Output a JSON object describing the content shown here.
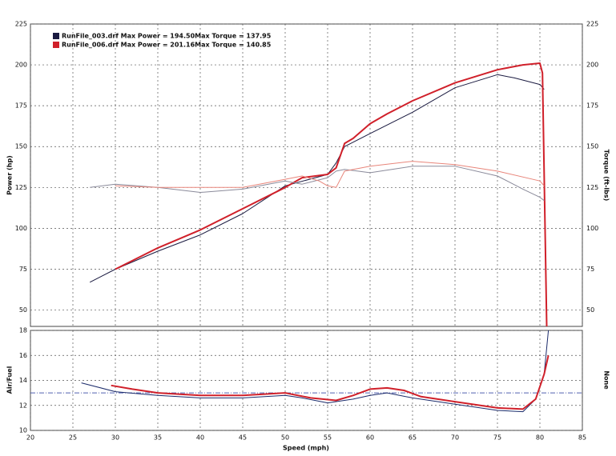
{
  "chart_data": [
    {
      "type": "line",
      "ylabel": "Power (hp)",
      "y2label": "Torque (ft-lbs)",
      "xlim": [
        20,
        85
      ],
      "ylim": [
        40,
        225
      ],
      "yticks": [
        50,
        75,
        100,
        125,
        150,
        175,
        200,
        225
      ],
      "y2lim": [
        40,
        225
      ],
      "y2ticks": [
        50,
        75,
        100,
        125,
        150,
        175,
        200,
        225
      ],
      "grid": true,
      "series": [
        {
          "name": "RunFile_003.drf Max Power = 194.50Max Torque = 137.95",
          "color": "#1a1a40",
          "x": [
            27,
            30,
            35,
            40,
            45,
            50,
            55,
            56,
            57,
            60,
            65,
            70,
            75,
            77,
            80,
            80.5
          ],
          "values": [
            67,
            75,
            86,
            96,
            109,
            126,
            133,
            140,
            150,
            158,
            171,
            186,
            194,
            192,
            188,
            185
          ]
        },
        {
          "name": "RunFile_006.drf Max Power = 201.16Max Torque = 140.85",
          "color": "#d0202a",
          "x": [
            30,
            35,
            40,
            45,
            50,
            52,
            55,
            56,
            57,
            58,
            60,
            62,
            65,
            70,
            75,
            78,
            80,
            80.3,
            80.8
          ],
          "values": [
            75,
            88,
            99,
            112,
            125,
            131,
            133,
            137,
            152,
            155,
            164,
            170,
            178,
            189,
            197,
            200,
            201,
            195,
            40
          ]
        },
        {
          "color": "#8a8a9a",
          "axis": "y2",
          "x": [
            27,
            30,
            35,
            40,
            45,
            50,
            52,
            55,
            56,
            57,
            60,
            65,
            70,
            75,
            78,
            80,
            80.5
          ],
          "values": [
            125,
            127,
            125,
            122,
            124,
            129,
            127,
            131,
            135,
            136,
            134,
            138,
            138,
            132,
            124,
            119,
            117
          ]
        },
        {
          "color": "#e8857a",
          "axis": "y2",
          "x": [
            30,
            35,
            40,
            45,
            50,
            52,
            54,
            55,
            56,
            57,
            60,
            65,
            70,
            75,
            80,
            80.5
          ],
          "values": [
            126,
            125,
            125,
            125,
            130,
            132,
            129,
            126,
            125,
            135,
            138,
            141,
            139,
            135,
            129,
            126
          ]
        }
      ]
    },
    {
      "type": "line",
      "ylabel": "Air/Fuel",
      "y2label": "None",
      "xlabel": "Speed (mph)",
      "xlim": [
        20,
        85
      ],
      "xticks": [
        20,
        25,
        30,
        35,
        40,
        45,
        50,
        55,
        60,
        65,
        70,
        75,
        80,
        85
      ],
      "ylim": [
        10,
        18
      ],
      "yticks": [
        10,
        12,
        14,
        16,
        18
      ],
      "hline": 13,
      "grid": true,
      "series": [
        {
          "color": "#1a2a6a",
          "x": [
            26,
            30,
            35,
            40,
            45,
            50,
            52,
            55,
            58,
            60,
            62,
            65,
            70,
            75,
            78,
            79.5,
            80.5,
            81
          ],
          "values": [
            13.8,
            13.1,
            12.8,
            12.6,
            12.6,
            12.8,
            12.6,
            12.2,
            12.5,
            12.8,
            13.0,
            12.6,
            12.1,
            11.6,
            11.5,
            12.5,
            14.5,
            18
          ]
        },
        {
          "color": "#d0202a",
          "x": [
            29.5,
            32,
            35,
            40,
            45,
            50,
            53,
            56,
            58,
            60,
            62,
            64,
            66,
            70,
            75,
            78,
            79.5,
            80.5,
            81
          ],
          "values": [
            13.6,
            13.3,
            13.0,
            12.8,
            12.8,
            13.0,
            12.6,
            12.4,
            12.8,
            13.3,
            13.4,
            13.2,
            12.7,
            12.3,
            11.8,
            11.7,
            12.5,
            14.5,
            16
          ]
        }
      ]
    }
  ]
}
